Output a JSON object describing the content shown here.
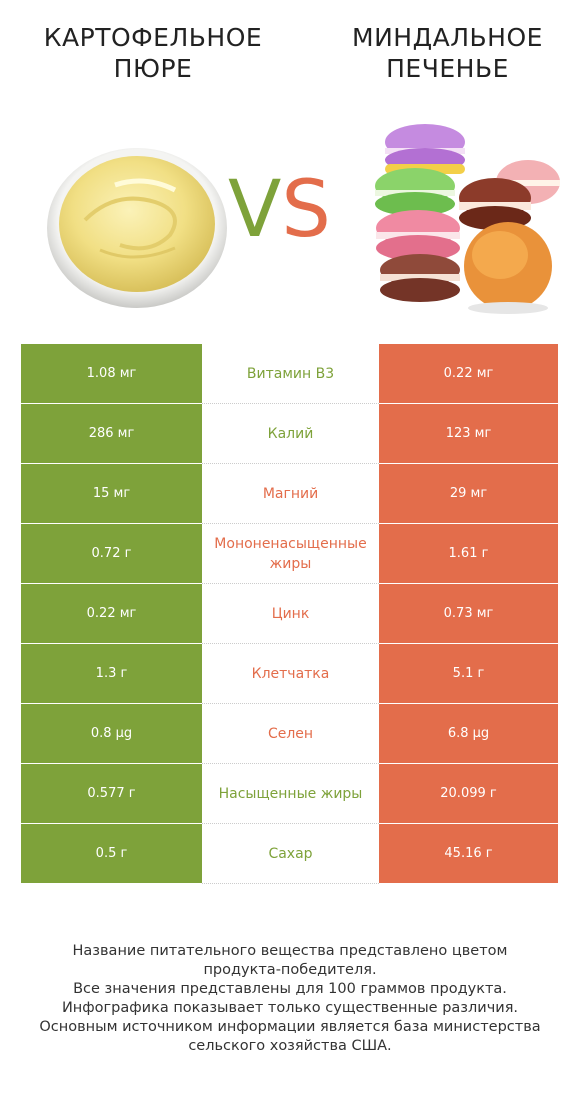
{
  "header": {
    "left_title": [
      "КАРТОФЕЛЬНОЕ",
      "ПЮРЕ"
    ],
    "right_title": [
      "МИНДАЛЬНОЕ",
      "ПЕЧЕНЬЕ"
    ],
    "vs_v": "V",
    "vs_s": "S"
  },
  "colors": {
    "left_accent": "#7ea23a",
    "right_accent": "#e36d4b"
  },
  "rows": [
    {
      "left": "1.08 мг",
      "name": "Витамин B3",
      "right": "0.22 мг",
      "winner": "left"
    },
    {
      "left": "286 мг",
      "name": "Калий",
      "right": "123 мг",
      "winner": "left"
    },
    {
      "left": "15 мг",
      "name": "Магний",
      "right": "29 мг",
      "winner": "right"
    },
    {
      "left": "0.72 г",
      "name": "Мононенасыщенные жиры",
      "right": "1.61 г",
      "winner": "right"
    },
    {
      "left": "0.22 мг",
      "name": "Цинк",
      "right": "0.73 мг",
      "winner": "right"
    },
    {
      "left": "1.3 г",
      "name": "Клетчатка",
      "right": "5.1 г",
      "winner": "right"
    },
    {
      "left": "0.8 µg",
      "name": "Селен",
      "right": "6.8 µg",
      "winner": "right"
    },
    {
      "left": "0.577 г",
      "name": "Насыщенные жиры",
      "right": "20.099 г",
      "winner": "left"
    },
    {
      "left": "0.5 г",
      "name": "Сахар",
      "right": "45.16 г",
      "winner": "left"
    }
  ],
  "footer": [
    "Название питательного вещества представлено цветом",
    "продукта-победителя.",
    "Все значения представлены для 100 граммов продукта.",
    "Инфографика показывает только существенные различия.",
    "Основным источником информации является база министерства",
    "сельского хозяйства США."
  ]
}
